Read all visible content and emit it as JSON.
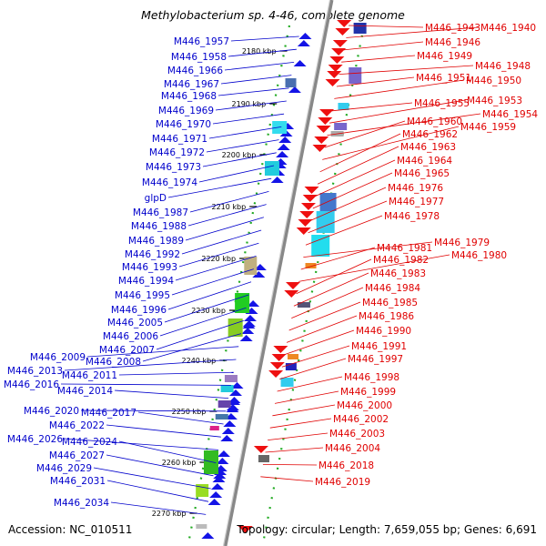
{
  "title": "Methylobacterium sp. 4-46, complete genome",
  "footer": {
    "accession": "Accession: NC_010511",
    "summary": "Topology: circular; Length: 7,659,055 bp; Genes: 6,691"
  },
  "colors": {
    "left_labels": "#0000cc",
    "right_labels": "#e00000",
    "axis": "#888888",
    "ruler_dots": "#22aa22"
  },
  "ruler_ticks": [
    "2180 kbp",
    "2190 kbp",
    "2200 kbp",
    "2210 kbp",
    "2220 kbp",
    "2230 kbp",
    "2240 kbp",
    "2250 kbp",
    "2260 kbp",
    "2270 kbp"
  ],
  "left_genes": [
    "M446_1957",
    "M446_1958",
    "M446_1966",
    "M446_1967",
    "M446_1968",
    "M446_1969",
    "M446_1970",
    "M446_1971",
    "M446_1972",
    "M446_1973",
    "M446_1974",
    "glpD",
    "M446_1987",
    "M446_1988",
    "M446_1989",
    "M446_1992",
    "M446_1993",
    "M446_1994",
    "M446_1995",
    "M446_1996",
    "M446_2005",
    "M446_2006",
    "M446_2007",
    "M446_2008",
    "M446_2009",
    "M446_2013",
    "M446_2011",
    "M446_2016",
    "M446_2014",
    "M446_2020",
    "M446_2017",
    "M446_2022",
    "M446_2026",
    "M446_2024",
    "M446_2027",
    "M446_2029",
    "M446_2031",
    "M446_2034"
  ],
  "right_genes": [
    "M446_1943",
    "M446_1940",
    "M446_1946",
    "M446_1949",
    "M446_1948",
    "M446_1951",
    "M446_1950",
    "M446_1955",
    "M446_1953",
    "M446_1954",
    "M446_1960",
    "M446_1959",
    "M446_1962",
    "M446_1963",
    "M446_1964",
    "M446_1965",
    "M446_1976",
    "M446_1977",
    "M446_1978",
    "M446_1979",
    "M446_1981",
    "M446_1980",
    "M446_1982",
    "M446_1983",
    "M446_1984",
    "M446_1985",
    "M446_1986",
    "M446_1990",
    "M446_1991",
    "M446_1997",
    "M446_1998",
    "M446_1999",
    "M446_2000",
    "M446_2002",
    "M446_2003",
    "M446_2004",
    "M446_2018",
    "M446_2019"
  ]
}
